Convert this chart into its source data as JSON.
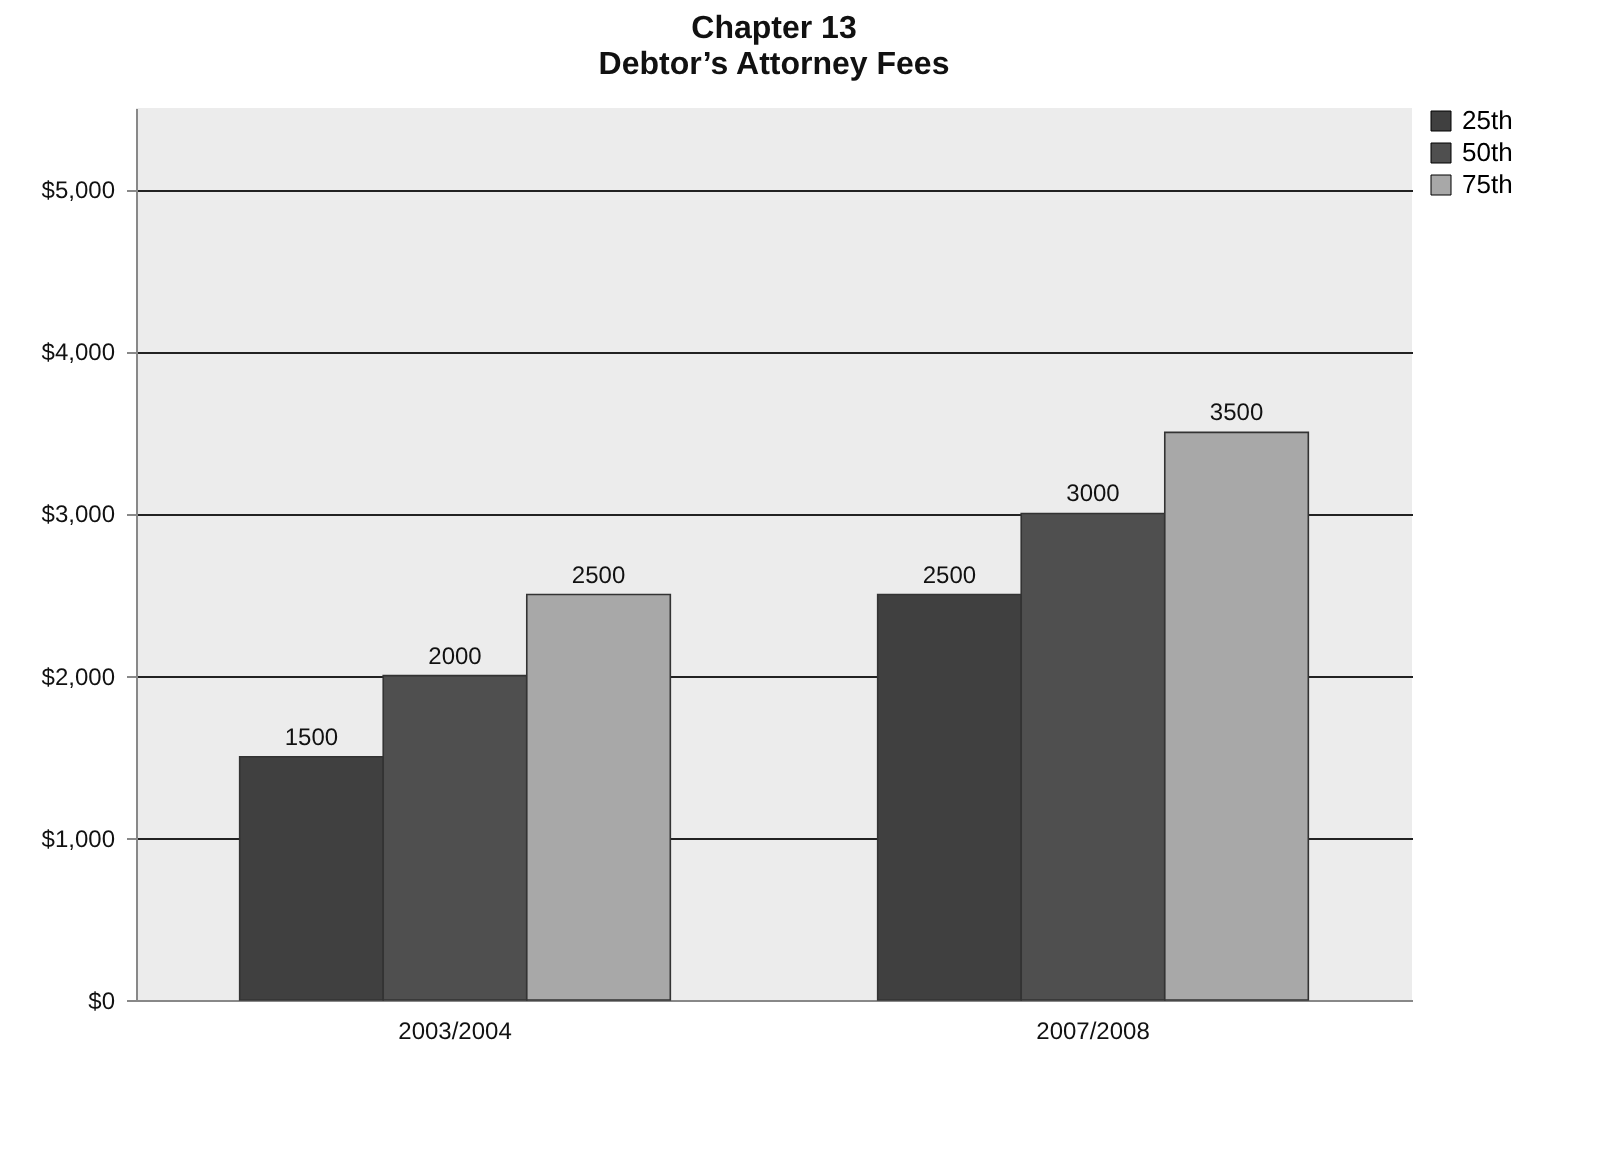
{
  "chart_data": {
    "type": "bar",
    "title": "Chapter 13\nDebtor’s Attorney Fees",
    "categories": [
      "2003/2004",
      "2007/2008"
    ],
    "series": [
      {
        "name": "25th",
        "color": "#404040",
        "values": [
          1500,
          2500
        ]
      },
      {
        "name": "50th",
        "color": "#4f4f4f",
        "values": [
          2000,
          3000
        ]
      },
      {
        "name": "75th",
        "color": "#a8a8a8",
        "values": [
          2500,
          3500
        ]
      }
    ],
    "ylim": [
      0,
      5500
    ],
    "yticks": [
      {
        "value": 0,
        "label": "$0"
      },
      {
        "value": 1000,
        "label": "$1,000"
      },
      {
        "value": 2000,
        "label": "$2,000"
      },
      {
        "value": 3000,
        "label": "$3,000"
      },
      {
        "value": 4000,
        "label": "$4,000"
      },
      {
        "value": 5000,
        "label": "$5,000"
      }
    ],
    "grid": "y",
    "legend": "right",
    "data_labels": true
  }
}
